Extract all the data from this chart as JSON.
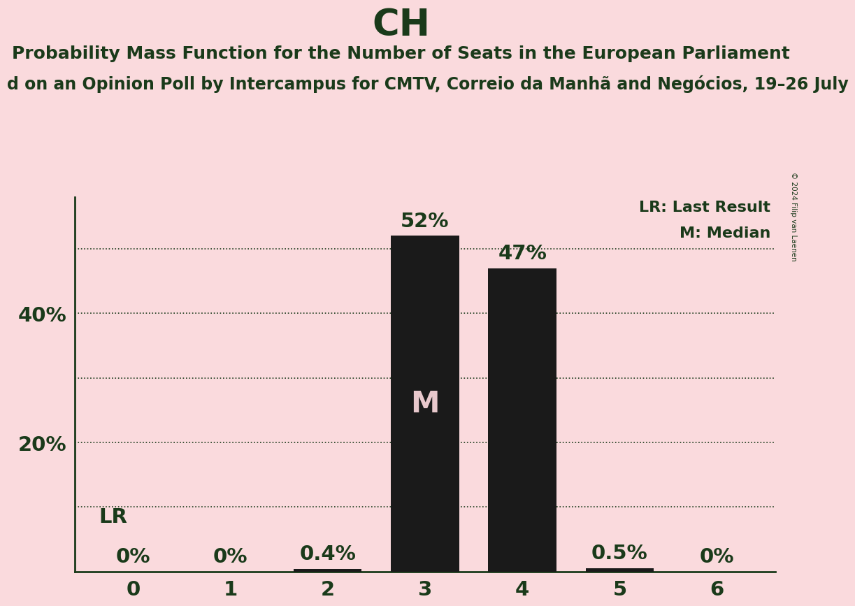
{
  "title": "CH",
  "subtitle1": "Probability Mass Function for the Number of Seats in the European Parliament",
  "subtitle2": "d on an Opinion Poll by Intercampus for CMTV, Correio da Manhã and Negócios, 19–26 July",
  "copyright": "© 2024 Filip van Laenen",
  "categories": [
    0,
    1,
    2,
    3,
    4,
    5,
    6
  ],
  "values": [
    0.0,
    0.0,
    0.4,
    52.0,
    47.0,
    0.5,
    0.0
  ],
  "bar_labels": [
    "0%",
    "0%",
    "0.4%",
    "52%",
    "47%",
    "0.5%",
    "0%"
  ],
  "bar_color": "#1a1a1a",
  "background_color": "#fadadd",
  "text_color": "#1a3a1a",
  "median_bar_idx": 3,
  "median_label": "M",
  "median_label_color": "#e8c8cc",
  "lr_label": "LR",
  "legend_lr": "LR: Last Result",
  "legend_m": "M: Median",
  "ylim": [
    0,
    58
  ],
  "grid_lines": [
    10,
    20,
    30,
    40,
    50
  ],
  "title_fontsize": 38,
  "subtitle1_fontsize": 18,
  "subtitle2_fontsize": 17,
  "label_fontsize": 21,
  "tick_fontsize": 21,
  "ytick_positions": [
    20,
    40
  ],
  "ytick_labels": [
    "20%",
    "40%"
  ]
}
